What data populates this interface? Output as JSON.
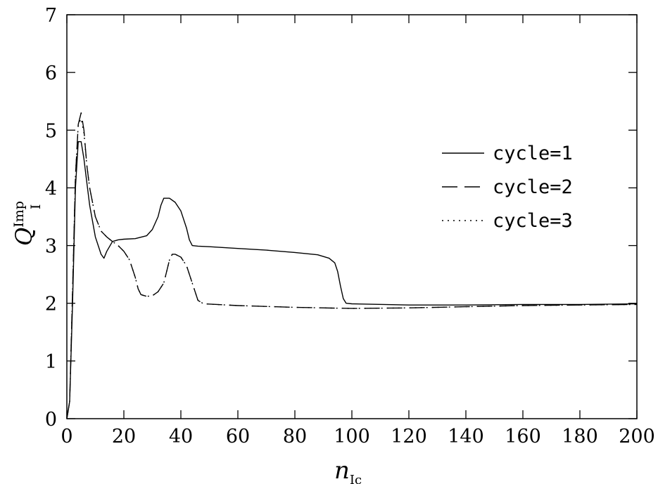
{
  "chart_data": {
    "type": "line",
    "title": "",
    "xlabel": "n",
    "xlabel_sub": "Ic",
    "ylabel": "Q",
    "ylabel_sup": "Imp",
    "ylabel_sub": "I",
    "xlim": [
      0,
      200
    ],
    "ylim": [
      0,
      7
    ],
    "xticks": [
      0,
      20,
      40,
      60,
      80,
      100,
      120,
      140,
      160,
      180,
      200
    ],
    "yticks": [
      0,
      1,
      2,
      3,
      4,
      5,
      6,
      7
    ],
    "grid": false,
    "legend_position": "right",
    "series": [
      {
        "name": "cycle=1",
        "style": "solid",
        "x": [
          0,
          1,
          2,
          3,
          4,
          5,
          6,
          7,
          8,
          10,
          12,
          13,
          14,
          16,
          18,
          20,
          24,
          28,
          30,
          32,
          33,
          34,
          36,
          38,
          40,
          42,
          43,
          44,
          46,
          50,
          60,
          70,
          80,
          88,
          92,
          94,
          95,
          96,
          97,
          98,
          100,
          120,
          140,
          160,
          180,
          200
        ],
        "y": [
          0,
          0.3,
          2.0,
          4.0,
          4.8,
          4.8,
          4.5,
          4.1,
          3.7,
          3.15,
          2.85,
          2.78,
          2.9,
          3.07,
          3.1,
          3.11,
          3.12,
          3.17,
          3.28,
          3.5,
          3.7,
          3.82,
          3.82,
          3.75,
          3.6,
          3.3,
          3.1,
          3.0,
          2.99,
          2.98,
          2.95,
          2.92,
          2.88,
          2.84,
          2.78,
          2.7,
          2.55,
          2.3,
          2.08,
          2.0,
          1.99,
          1.97,
          1.97,
          1.98,
          1.98,
          1.99
        ]
      },
      {
        "name": "cycle=2",
        "style": "dashed",
        "x": [
          0,
          1,
          2,
          3,
          4,
          5,
          6,
          7,
          8,
          10,
          12,
          14,
          16,
          18,
          20,
          22,
          24,
          25,
          26,
          28,
          30,
          32,
          34,
          35,
          36,
          37,
          38,
          40,
          42,
          44,
          46,
          48,
          60,
          80,
          100,
          120,
          140,
          160,
          180,
          200
        ],
        "y": [
          0,
          0.3,
          2.2,
          4.2,
          5.1,
          5.3,
          5.0,
          4.4,
          4.0,
          3.5,
          3.25,
          3.15,
          3.07,
          3.0,
          2.9,
          2.75,
          2.45,
          2.25,
          2.15,
          2.12,
          2.13,
          2.2,
          2.35,
          2.55,
          2.75,
          2.85,
          2.85,
          2.8,
          2.65,
          2.35,
          2.05,
          1.99,
          1.96,
          1.93,
          1.91,
          1.92,
          1.94,
          1.96,
          1.97,
          1.98
        ]
      },
      {
        "name": "cycle=3",
        "style": "dotted",
        "x": [
          0,
          1,
          2,
          3,
          4,
          5,
          6,
          7,
          8,
          10,
          12,
          14,
          16,
          18,
          20,
          22,
          24,
          25,
          26,
          28,
          30,
          32,
          34,
          35,
          36,
          37,
          38,
          40,
          42,
          44,
          46,
          48,
          60,
          80,
          100,
          120,
          140,
          160,
          180,
          200
        ],
        "y": [
          0,
          0.3,
          2.2,
          4.2,
          5.1,
          5.2,
          4.95,
          4.4,
          4.0,
          3.5,
          3.25,
          3.15,
          3.07,
          3.0,
          2.9,
          2.75,
          2.45,
          2.25,
          2.15,
          2.12,
          2.13,
          2.2,
          2.35,
          2.55,
          2.75,
          2.85,
          2.85,
          2.8,
          2.65,
          2.35,
          2.05,
          1.99,
          1.96,
          1.93,
          1.91,
          1.92,
          1.94,
          1.96,
          1.97,
          1.98
        ]
      }
    ]
  }
}
